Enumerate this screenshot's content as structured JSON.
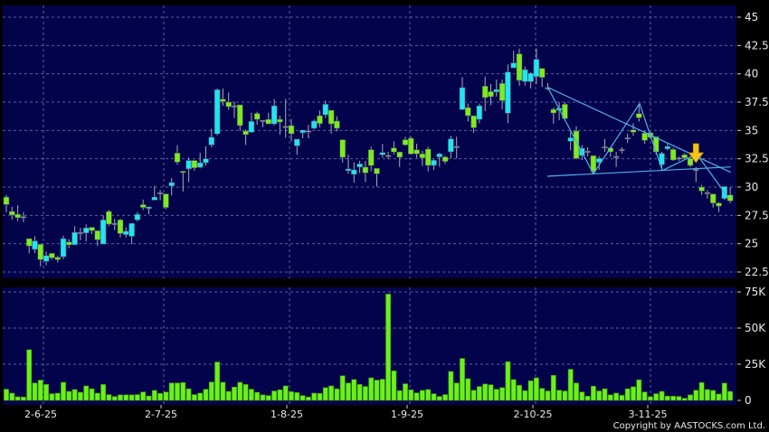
{
  "chart_data": [
    {
      "type": "candlestick",
      "panel": "price",
      "y_ticks": [
        "45",
        "42.5",
        "40",
        "37.5",
        "35",
        "32.5",
        "30",
        "27.5",
        "25",
        "22.5"
      ],
      "ylim": [
        22.5,
        45
      ],
      "grid": true,
      "up_color": "#22e4f2",
      "down_color": "#7cec20",
      "doji_color": "#a0a0b0",
      "ohlc": [
        [
          29.12,
          29.3,
          27.8,
          28.46
        ],
        [
          27.85,
          28.25,
          27.13,
          27.53
        ],
        [
          27.6,
          28.4,
          27.0,
          27.3
        ],
        [
          27.4,
          27.8,
          26.9,
          27.4
        ],
        [
          25.45,
          25.45,
          24.15,
          24.8
        ],
        [
          24.5,
          25.65,
          24.2,
          25.25
        ],
        [
          24.95,
          24.95,
          23.0,
          23.6
        ],
        [
          23.45,
          24.3,
          23.1,
          23.95
        ],
        [
          24.15,
          24.15,
          23.6,
          23.75
        ],
        [
          23.8,
          23.95,
          23.35,
          23.6
        ],
        [
          23.85,
          25.7,
          23.65,
          25.45
        ],
        [
          25.15,
          25.4,
          24.6,
          24.9
        ],
        [
          24.9,
          26.55,
          24.9,
          26.0
        ],
        [
          26.0,
          26.4,
          25.3,
          26.0
        ],
        [
          25.95,
          26.7,
          25.2,
          26.4
        ],
        [
          26.45,
          26.45,
          25.85,
          26.15
        ],
        [
          26.15,
          26.15,
          24.8,
          25.35
        ],
        [
          24.97,
          27.5,
          24.97,
          27.1
        ],
        [
          27.85,
          27.98,
          26.55,
          26.73
        ],
        [
          26.8,
          27.2,
          26.2,
          26.8
        ],
        [
          27.1,
          27.2,
          25.55,
          25.9
        ],
        [
          25.8,
          26.45,
          25.55,
          26.1
        ],
        [
          25.65,
          26.8,
          24.95,
          26.8
        ],
        [
          27.1,
          27.8,
          26.95,
          27.6
        ],
        [
          28.45,
          28.9,
          27.98,
          28.2
        ],
        [
          28.1,
          28.25,
          27.6,
          28.25
        ],
        [
          28.85,
          30.1,
          28.85,
          29.12
        ],
        [
          29.5,
          29.75,
          28.85,
          29.5
        ],
        [
          29.4,
          29.4,
          28.05,
          28.2
        ],
        [
          30.1,
          30.8,
          29.26,
          30.4
        ],
        [
          33.0,
          33.7,
          31.97,
          32.2
        ],
        [
          31.4,
          31.44,
          29.6,
          31.3
        ],
        [
          31.6,
          32.6,
          30.45,
          32.35
        ],
        [
          32.35,
          32.35,
          31.45,
          31.7
        ],
        [
          31.75,
          33.03,
          31.65,
          32.15
        ],
        [
          32.15,
          33.6,
          31.9,
          32.5
        ],
        [
          33.72,
          35.16,
          33.5,
          34.4
        ],
        [
          34.7,
          38.7,
          34.57,
          38.6
        ],
        [
          37.77,
          38.7,
          37.18,
          37.55
        ],
        [
          37.5,
          38.35,
          36.83,
          37.1
        ],
        [
          37.18,
          37.55,
          36.1,
          37.18
        ],
        [
          37.26,
          37.26,
          34.97,
          35.43
        ],
        [
          34.95,
          35.1,
          33.72,
          34.63
        ],
        [
          34.84,
          36.57,
          34.79,
          35.8
        ],
        [
          36.5,
          36.65,
          35.5,
          35.98
        ],
        [
          35.9,
          35.9,
          35.3,
          35.9
        ],
        [
          35.98,
          36.57,
          35.58,
          35.58
        ],
        [
          35.58,
          37.77,
          35.43,
          37.18
        ],
        [
          35.98,
          36.3,
          34.63,
          35.74
        ],
        [
          35.37,
          37.77,
          34.36,
          35.37
        ],
        [
          35.43,
          35.98,
          34.04,
          34.71
        ],
        [
          33.64,
          34.23,
          32.85,
          34.23
        ],
        [
          34.79,
          35.03,
          34.31,
          35.03
        ],
        [
          34.97,
          35.5,
          34.3,
          34.97
        ],
        [
          35.19,
          35.96,
          35.1,
          35.83
        ],
        [
          36.3,
          36.76,
          35.3,
          35.6
        ],
        [
          36.38,
          37.63,
          36.1,
          37.31
        ],
        [
          36.78,
          36.78,
          34.71,
          35.58
        ],
        [
          35.83,
          36.25,
          34.92,
          35.19
        ],
        [
          34.18,
          34.18,
          32.18,
          32.63
        ],
        [
          31.44,
          32.85,
          31.17,
          31.6
        ],
        [
          31.12,
          32.18,
          30.4,
          31.52
        ],
        [
          31.76,
          32.31,
          31.25,
          32.05
        ],
        [
          31.76,
          32.31,
          30.45,
          31.25
        ],
        [
          33.3,
          33.56,
          31.4,
          31.9
        ],
        [
          31.65,
          31.65,
          30.05,
          31.17
        ],
        [
          32.85,
          33.8,
          32.6,
          33.05
        ],
        [
          32.8,
          33.1,
          32.45,
          32.8
        ],
        [
          33.46,
          34.04,
          32.85,
          33.1
        ],
        [
          33.1,
          33.1,
          31.78,
          32.63
        ],
        [
          34.18,
          34.44,
          33.64,
          33.72
        ],
        [
          34.31,
          34.44,
          32.85,
          32.93
        ],
        [
          33.3,
          33.83,
          32.58,
          32.93
        ],
        [
          32.93,
          33.19,
          31.86,
          32.58
        ],
        [
          33.35,
          33.56,
          31.38,
          31.91
        ],
        [
          31.91,
          32.45,
          31.52,
          32.37
        ],
        [
          32.66,
          33.03,
          31.78,
          32.93
        ],
        [
          32.66,
          32.77,
          32.05,
          32.26
        ],
        [
          33.11,
          34.52,
          32.53,
          34.26
        ],
        [
          33.59,
          34.44,
          32.53,
          33.59
        ],
        [
          36.84,
          39.7,
          36.8,
          38.78
        ],
        [
          37.02,
          37.37,
          35.77,
          36.3
        ],
        [
          36.3,
          36.3,
          34.79,
          35.24
        ],
        [
          35.98,
          37.37,
          35.64,
          37.18
        ],
        [
          38.91,
          39.76,
          36.7,
          37.9
        ],
        [
          38.43,
          39.1,
          37.23,
          37.98
        ],
        [
          38.4,
          39.5,
          37.98,
          38.62
        ],
        [
          39.15,
          39.5,
          36.84,
          37.63
        ],
        [
          36.52,
          40.82,
          35.64,
          40.16
        ],
        [
          40.53,
          42.02,
          40.48,
          40.96
        ],
        [
          41.76,
          42.23,
          38.96,
          39.42
        ],
        [
          39.31,
          40.64,
          38.96,
          40.37
        ],
        [
          39.31,
          40.16,
          38.7,
          40.05
        ],
        [
          39.76,
          42.23,
          39.1,
          41.28
        ],
        [
          40.48,
          40.48,
          38.83,
          39.68
        ],
        [
          38.78,
          39.2,
          38.56,
          38.78
        ],
        [
          36.86,
          37.02,
          35.59,
          36.54
        ],
        [
          36.78,
          37.5,
          35.9,
          36.97
        ],
        [
          37.31,
          37.5,
          35.9,
          36.04
        ],
        [
          34.04,
          34.97,
          33.24,
          34.36
        ],
        [
          34.95,
          35.37,
          32.45,
          32.53
        ],
        [
          32.79,
          33.72,
          32.39,
          33.43
        ],
        [
          33.17,
          33.51,
          32.71,
          33.17
        ],
        [
          32.77,
          32.77,
          31.17,
          31.38
        ],
        [
          32.18,
          32.71,
          31.52,
          32.53
        ],
        [
          33.56,
          34.23,
          33.11,
          33.56
        ],
        [
          33.46,
          33.56,
          32.66,
          33.11
        ],
        [
          32.71,
          33.11,
          31.78,
          32.71
        ],
        [
          33.32,
          33.51,
          32.98,
          33.32
        ],
        [
          34.36,
          34.71,
          33.9,
          34.36
        ],
        [
          35.05,
          35.64,
          34.52,
          34.84
        ],
        [
          36.49,
          37.23,
          35.77,
          36.12
        ],
        [
          34.76,
          34.95,
          33.83,
          34.12
        ],
        [
          34.79,
          34.84,
          34.26,
          34.39
        ],
        [
          34.44,
          34.44,
          32.85,
          33.11
        ],
        [
          31.97,
          33.11,
          31.52,
          32.98
        ],
        [
          33.38,
          33.83,
          33.24,
          33.59
        ],
        [
          33.32,
          33.46,
          32.31,
          32.39
        ],
        [
          32.58,
          32.71,
          32.31,
          32.58
        ],
        [
          32.85,
          32.98,
          32.45,
          32.58
        ],
        [
          32.53,
          32.71,
          31.78,
          31.91
        ],
        [
          31.57,
          31.78,
          30.45,
          31.57
        ],
        [
          30.0,
          30.19,
          29.31,
          29.65
        ],
        [
          29.52,
          29.73,
          28.99,
          29.52
        ],
        [
          29.39,
          29.39,
          28.19,
          28.59
        ],
        [
          28.59,
          28.67,
          27.8,
          28.32
        ],
        [
          28.99,
          30.05,
          28.86,
          30.05
        ],
        [
          29.31,
          30.0,
          28.59,
          28.78
        ]
      ],
      "trendlines": [
        {
          "name": "descending-resistance",
          "color": "#4ab0e8",
          "points": [
            [
              95,
              38.8
            ],
            [
              127.1,
              31.3
            ]
          ]
        },
        {
          "name": "support",
          "color": "#4ab0e8",
          "points": [
            [
              94.9,
              30.96
            ],
            [
              127.1,
              31.78
            ]
          ]
        },
        {
          "name": "zigzag",
          "color": "#4ab0e8",
          "points": [
            [
              95,
              38.8
            ],
            [
              103,
              31.17
            ],
            [
              111.1,
              37.37
            ],
            [
              115.1,
              31.46
            ],
            [
              121.1,
              32.93
            ],
            [
              126.7,
              29.04
            ]
          ]
        }
      ],
      "signal_arrow": {
        "index": 121,
        "direction": "down",
        "color": "#f5c518"
      }
    },
    {
      "type": "bar",
      "panel": "volume",
      "y_ticks": [
        "75K",
        "50K",
        "25K",
        "0"
      ],
      "ylim": [
        0,
        75
      ],
      "unit": "K",
      "grid": true,
      "bar_color": "#6cf01a",
      "values": [
        7.7,
        5,
        2.5,
        2.3,
        35,
        12,
        14,
        11,
        4.6,
        5,
        12.5,
        6.2,
        7.5,
        5.6,
        10,
        8,
        5,
        11,
        4,
        2.7,
        3.8,
        3.8,
        3.8,
        4,
        5.8,
        3,
        6.9,
        4.8,
        5.8,
        12,
        12,
        12.3,
        8,
        4,
        5,
        7.7,
        12.7,
        26.5,
        12.5,
        6.2,
        9.2,
        12.5,
        11,
        7.7,
        5.6,
        3.8,
        3.3,
        6.5,
        7.3,
        10,
        6,
        5.4,
        3.3,
        2.3,
        5,
        4.8,
        8.8,
        10,
        8,
        17,
        12,
        14.4,
        11,
        9.6,
        15.6,
        14,
        14.6,
        73.5,
        20.4,
        6.7,
        11.5,
        7.3,
        5.2,
        6.9,
        7.5,
        4.6,
        2.7,
        4,
        20,
        12,
        29,
        15,
        7,
        9.6,
        11.3,
        10.8,
        7.7,
        8.8,
        26.7,
        14.4,
        10.4,
        6.7,
        13.5,
        15.6,
        8.3,
        6.5,
        17.3,
        7,
        6.5,
        21.5,
        12,
        5.8,
        2.9,
        9.8,
        6.5,
        8,
        3.8,
        5,
        3.5,
        8,
        9.4,
        14.2,
        5.8,
        2.5,
        4.6,
        6.2,
        2.9,
        2.9,
        2.7,
        1.5,
        3.8,
        7,
        12.3,
        7.5,
        6.9,
        4.4,
        11.9,
        6.2
      ]
    }
  ],
  "x_axis": {
    "labels": [
      "2-6-25",
      "2-7-25",
      "1-8-25",
      "1-9-25",
      "2-10-25",
      "3-11-25"
    ]
  },
  "colors": {
    "background": "#000000",
    "panel": "#03034c",
    "grid": "#5c5c9c"
  },
  "footer": {
    "copyright": "Copyright by AASTOCKS.com Ltd."
  }
}
